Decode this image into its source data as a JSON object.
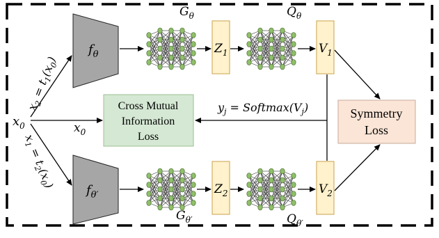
{
  "diagram": {
    "input": {
      "sym": "x",
      "sub": "0"
    },
    "branch_top": {
      "left": "x",
      "sub": "2",
      "rest": " = t",
      "sub2": "1",
      "arg": "(x",
      "argsub": "0",
      "close": ")"
    },
    "branch_bottom": {
      "left": "x",
      "sub": "1",
      "rest": " = t",
      "sub2": "2",
      "arg": "(x",
      "argsub": "0",
      "close": ")"
    },
    "middle_arrow_label": {
      "sym": "x",
      "sub": "0"
    },
    "encoder_top": {
      "sym": "f",
      "sub": "θ"
    },
    "encoder_bottom": {
      "sym": "f",
      "sub": "θ′"
    },
    "projector_top": {
      "sym": "G",
      "sub": "θ"
    },
    "projector_bottom": {
      "sym": "G",
      "sub": "θ′"
    },
    "predictor_top": {
      "sym": "Q",
      "sub": "θ"
    },
    "predictor_bottom": {
      "sym": "Q",
      "sub": "θ′"
    },
    "z_top": {
      "sym": "Z",
      "sub": "1"
    },
    "z_bottom": {
      "sym": "Z",
      "sub": "2"
    },
    "v_top": {
      "sym": "V",
      "sub": "1"
    },
    "v_bottom": {
      "sym": "V",
      "sub": "2"
    },
    "softmax_label": {
      "y": "y",
      "ysub": "j",
      "eq": " = ",
      "fn": "Softmax",
      "open": "(V",
      "vsub": "j",
      "close": ")"
    },
    "cmi_box": {
      "line1": "Cross Mutual",
      "line2": "Information",
      "line3": "Loss"
    },
    "symmetry_box": {
      "line1": "Symmetry",
      "line2": "Loss"
    },
    "colors": {
      "encoder_fill": "#a6a6a6",
      "vector_fill": "#fff2cc",
      "vector_stroke": "#c9a24b",
      "node_fill": "#8fbf6a",
      "node_stroke": "#3d5f22",
      "cmi_fill": "#d5e8d4",
      "symmetry_fill": "#fbe5d6"
    }
  }
}
